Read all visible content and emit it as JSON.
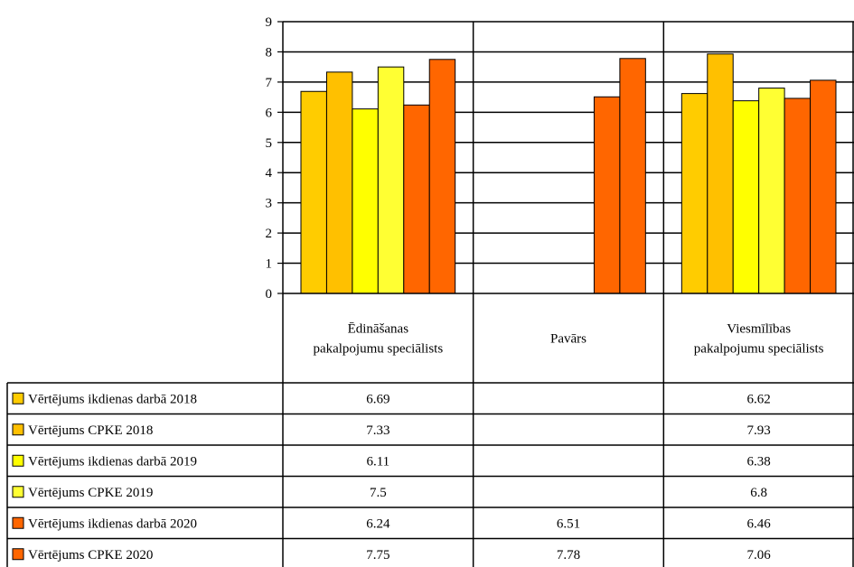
{
  "chart_data": {
    "type": "bar",
    "categories": [
      [
        "Ēdināšanas",
        "pakalpojumu speciālists"
      ],
      [
        "Pavārs"
      ],
      [
        "Viesmīlības",
        "pakalpojumu speciālists"
      ]
    ],
    "ylim": [
      0,
      9
    ],
    "yticks": [
      "0",
      "1",
      "2",
      "3",
      "4",
      "5",
      "6",
      "7",
      "8",
      "9"
    ],
    "grid": true,
    "series": [
      {
        "name": "Vērtējums ikdienas darbā 2018",
        "color": "#FFCC00",
        "values": [
          6.69,
          null,
          6.62
        ],
        "labels": [
          "6.69",
          "",
          "6.62"
        ]
      },
      {
        "name": "Vērtējums CPKE 2018",
        "color": "#FFC000",
        "values": [
          7.33,
          null,
          7.93
        ],
        "labels": [
          "7.33",
          "",
          "7.93"
        ]
      },
      {
        "name": "Vērtējums ikdienas darbā 2019",
        "color": "#FFFF00",
        "values": [
          6.11,
          null,
          6.38
        ],
        "labels": [
          "6.11",
          "",
          "6.38"
        ]
      },
      {
        "name": "Vērtējums CPKE 2019",
        "color": "#FFFF33",
        "values": [
          7.5,
          null,
          6.8
        ],
        "labels": [
          "7.5",
          "",
          "6.8"
        ]
      },
      {
        "name": "Vērtējums ikdienas darbā 2020",
        "color": "#FF6600",
        "values": [
          6.24,
          6.51,
          6.46
        ],
        "labels": [
          "6.24",
          "6.51",
          "6.46"
        ]
      },
      {
        "name": "Vērtējums CPKE 2020",
        "color": "#FF6600",
        "values": [
          7.75,
          7.78,
          7.06
        ],
        "labels": [
          "7.75",
          "7.78",
          "7.06"
        ]
      }
    ]
  }
}
